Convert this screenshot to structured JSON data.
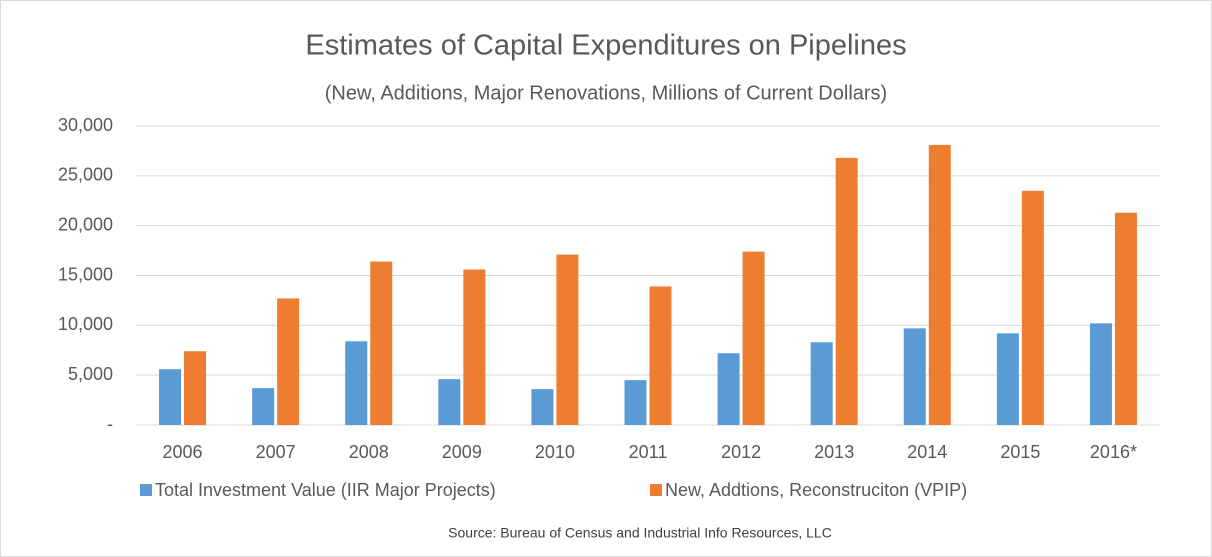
{
  "chart_data": {
    "type": "bar",
    "title": "Estimates of Capital Expenditures on Pipelines",
    "subtitle": "(New, Additions, Major Renovations, Millions of Current Dollars)",
    "source": "Source: Bureau of Census and Industrial Info Resources, LLC",
    "categories": [
      "2006",
      "2007",
      "2008",
      "2009",
      "2010",
      "2011",
      "2012",
      "2013",
      "2014",
      "2015",
      "2016*"
    ],
    "series": [
      {
        "name": "Total Investment Value (IIR Major Projects)",
        "color": "#5b9bd5",
        "values": [
          5600,
          3700,
          8400,
          4600,
          3600,
          4500,
          7200,
          8300,
          9700,
          9200,
          10200
        ]
      },
      {
        "name": "New, Addtions, Reconstruciton (VPIP)",
        "color": "#ed7d31",
        "values": [
          7400,
          12700,
          16400,
          15600,
          17100,
          13900,
          17400,
          26800,
          28100,
          23500,
          21300
        ]
      }
    ],
    "ylim": [
      0,
      30000
    ],
    "yticks": [
      {
        "value": 0,
        "label": "-"
      },
      {
        "value": 5000,
        "label": "5,000"
      },
      {
        "value": 10000,
        "label": "10,000"
      },
      {
        "value": 15000,
        "label": "15,000"
      },
      {
        "value": 20000,
        "label": "20,000"
      },
      {
        "value": 25000,
        "label": "25,000"
      },
      {
        "value": 30000,
        "label": "30,000"
      }
    ],
    "grid": true,
    "legend": "bottom"
  }
}
